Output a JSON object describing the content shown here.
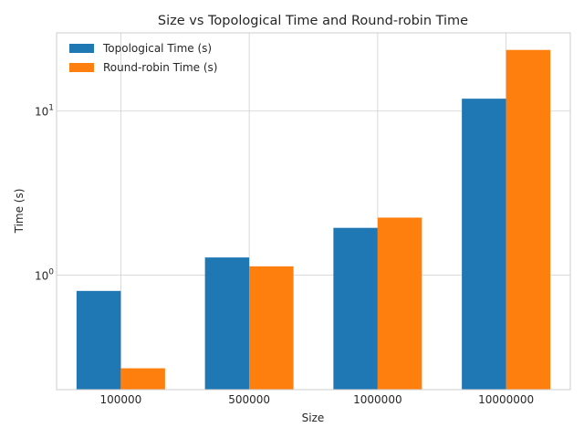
{
  "chart_data": {
    "type": "bar",
    "title": "Size vs Topological Time and Round-robin Time",
    "xlabel": "Size",
    "ylabel": "Time (s)",
    "categories": [
      "100000",
      "500000",
      "1000000",
      "10000000"
    ],
    "series": [
      {
        "name": "Topological Time (s)",
        "color": "#1f77b4",
        "values": [
          0.8,
          1.28,
          1.94,
          11.9
        ]
      },
      {
        "name": "Round-robin Time (s)",
        "color": "#ff7f0e",
        "values": [
          0.27,
          1.13,
          2.24,
          23.6
        ]
      }
    ],
    "yscale": "log",
    "ylim": [
      0.2,
      30
    ],
    "yticks": [
      {
        "value": 1,
        "base": "10",
        "exp": "0"
      },
      {
        "value": 10,
        "base": "10",
        "exp": "1"
      }
    ],
    "grid": true,
    "legend_position": "top-left"
  }
}
